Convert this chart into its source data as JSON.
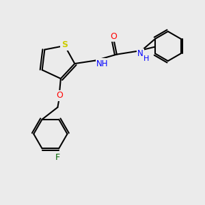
{
  "background_color": "#ebebeb",
  "bond_color": "#000000",
  "bond_lw": 1.5,
  "colors": {
    "S": "#cccc00",
    "O": "#ff0000",
    "N": "#0000ff",
    "F": "#006400",
    "C": "#000000"
  },
  "font_size": 8.5
}
